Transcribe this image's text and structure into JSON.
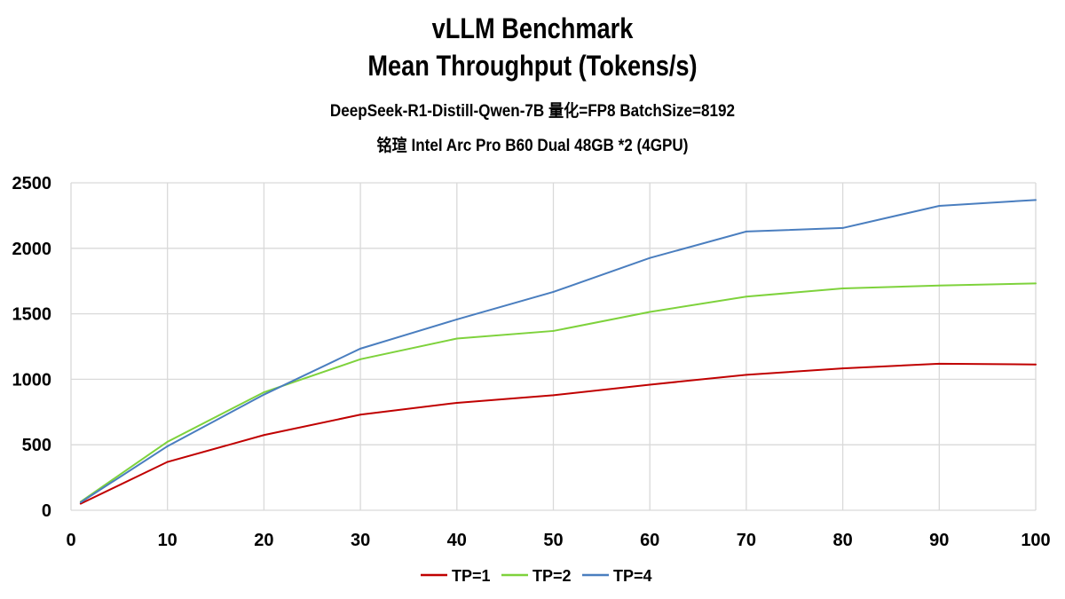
{
  "chart_data": {
    "type": "line",
    "title": "vLLM Benchmark",
    "title_line2": "Mean Throughput (Tokens/s)",
    "subtitle": "DeepSeek-R1-Distill-Qwen-7B 量化=FP8 BatchSize=8192",
    "subtitle2": "铭瑄 Intel Arc Pro B60 Dual 48GB *2 (4GPU)",
    "xlabel": "",
    "ylabel": "",
    "xlim": [
      0,
      100
    ],
    "ylim": [
      0,
      2500
    ],
    "xticks": [
      "0",
      "10",
      "20",
      "30",
      "40",
      "50",
      "60",
      "70",
      "80",
      "90",
      "100"
    ],
    "yticks": [
      "0",
      "500",
      "1000",
      "1500",
      "2000",
      "2500"
    ],
    "grid": true,
    "legend_placement": "bottom",
    "x": [
      1,
      10,
      20,
      30,
      40,
      50,
      60,
      70,
      80,
      90,
      100
    ],
    "series": [
      {
        "name": "TP=1",
        "color": "#c00000",
        "values": [
          50,
          369,
          574,
          730,
          820,
          878,
          959,
          1034,
          1083,
          1119,
          1113
        ]
      },
      {
        "name": "TP=2",
        "color": "#7ed23c",
        "values": [
          65,
          523,
          901,
          1153,
          1311,
          1369,
          1514,
          1631,
          1694,
          1716,
          1732
        ]
      },
      {
        "name": "TP=4",
        "color": "#4a7ebf",
        "values": [
          60,
          489,
          883,
          1234,
          1457,
          1667,
          1926,
          2128,
          2155,
          2324,
          2369
        ]
      }
    ]
  }
}
